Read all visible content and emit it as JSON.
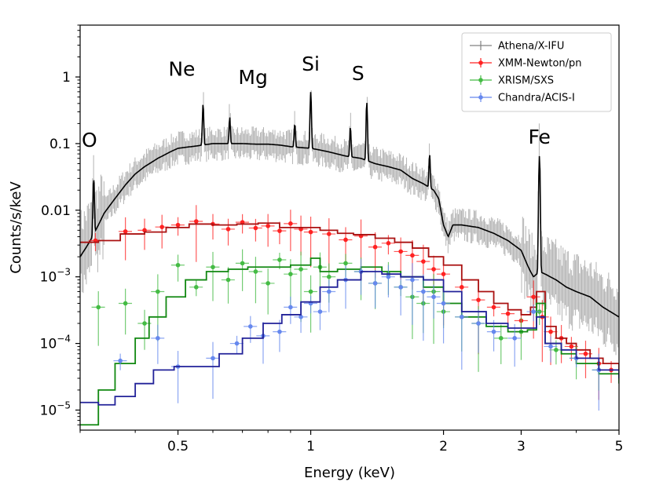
{
  "chart_data": {
    "type": "line",
    "title": "",
    "xlabel": "Energy (keV)",
    "ylabel": "Counts/s/keV",
    "xscale": "log",
    "yscale": "log",
    "xlim": [
      0.3,
      5
    ],
    "ylim": [
      5e-06,
      6
    ],
    "x_ticks": [
      {
        "value": 0.5,
        "label": "0.5"
      },
      {
        "value": 1,
        "label": "1"
      },
      {
        "value": 2,
        "label": "2"
      },
      {
        "value": 3,
        "label": "3"
      },
      {
        "value": 5,
        "label": "5"
      }
    ],
    "y_ticks": [
      {
        "value": 1,
        "label": "1"
      },
      {
        "value": 0.1,
        "label": "0.1"
      },
      {
        "value": 0.01,
        "label": "0.01"
      },
      {
        "value": 0.001,
        "base": "10",
        "exp": "−3"
      },
      {
        "value": 0.0001,
        "base": "10",
        "exp": "−4"
      },
      {
        "value": 1e-05,
        "base": "10",
        "exp": "−5"
      }
    ],
    "legend_position": "top-right",
    "annotations": [
      {
        "text": "O",
        "x": 0.315,
        "y": 0.09
      },
      {
        "text": "Ne",
        "x": 0.51,
        "y": 1.05
      },
      {
        "text": "Mg",
        "x": 0.74,
        "y": 0.78
      },
      {
        "text": "Si",
        "x": 1.0,
        "y": 1.25
      },
      {
        "text": "S",
        "x": 1.28,
        "y": 0.9
      },
      {
        "text": "Fe",
        "x": 3.3,
        "y": 0.1
      }
    ],
    "series": [
      {
        "name": "Athena/X-IFU",
        "color": "#000000",
        "points_color": "#808080",
        "x": [
          0.3,
          0.31,
          0.32,
          0.33,
          0.34,
          0.36,
          0.38,
          0.4,
          0.42,
          0.45,
          0.48,
          0.5,
          0.55,
          0.6,
          0.65,
          0.7,
          0.75,
          0.8,
          0.85,
          0.9,
          0.95,
          1.0,
          1.05,
          1.1,
          1.2,
          1.3,
          1.4,
          1.5,
          1.6,
          1.7,
          1.8,
          1.9,
          1.95,
          2.0,
          2.05,
          2.1,
          2.2,
          2.4,
          2.6,
          2.8,
          3.0,
          3.1,
          3.15,
          3.2,
          3.3,
          3.4,
          3.6,
          3.8,
          4.0,
          4.3,
          4.6,
          5.0
        ],
        "y": [
          0.002,
          0.0028,
          0.004,
          0.006,
          0.009,
          0.015,
          0.024,
          0.035,
          0.045,
          0.06,
          0.075,
          0.085,
          0.092,
          0.1,
          0.1,
          0.1,
          0.098,
          0.098,
          0.095,
          0.09,
          0.087,
          0.085,
          0.08,
          0.075,
          0.065,
          0.06,
          0.05,
          0.045,
          0.04,
          0.03,
          0.025,
          0.02,
          0.015,
          0.006,
          0.004,
          0.006,
          0.006,
          0.0055,
          0.0045,
          0.0035,
          0.0025,
          0.0015,
          0.0012,
          0.001,
          0.0012,
          0.0011,
          0.0009,
          0.0007,
          0.0006,
          0.0005,
          0.00035,
          0.00025
        ],
        "lines": [
          {
            "x": 0.322,
            "peak": 0.03
          },
          {
            "x": 0.57,
            "peak": 0.4
          },
          {
            "x": 0.655,
            "peak": 0.25
          },
          {
            "x": 0.92,
            "peak": 0.2
          },
          {
            "x": 1.0,
            "peak": 0.6
          },
          {
            "x": 1.23,
            "peak": 0.18
          },
          {
            "x": 1.34,
            "peak": 0.42
          },
          {
            "x": 1.86,
            "peak": 0.07
          },
          {
            "x": 3.3,
            "peak": 0.065
          }
        ]
      },
      {
        "name": "XMM-Newton/pn",
        "color": "#aa1111",
        "points_color": "#ff2222",
        "x": [
          0.3,
          0.33,
          0.37,
          0.42,
          0.47,
          0.53,
          0.6,
          0.68,
          0.76,
          0.85,
          0.95,
          1.05,
          1.15,
          1.25,
          1.4,
          1.55,
          1.7,
          1.85,
          2.0,
          2.2,
          2.4,
          2.6,
          2.8,
          3.0,
          3.15,
          3.25,
          3.4,
          3.6,
          3.8,
          4.0,
          4.3,
          4.6,
          5.0
        ],
        "y": [
          0.0033,
          0.0035,
          0.0044,
          0.0047,
          0.0055,
          0.0062,
          0.006,
          0.0062,
          0.0064,
          0.0055,
          0.0055,
          0.005,
          0.0045,
          0.0043,
          0.0038,
          0.0033,
          0.0027,
          0.002,
          0.0015,
          0.0009,
          0.0006,
          0.0004,
          0.00032,
          0.00027,
          0.00035,
          0.0006,
          0.00018,
          0.00012,
          0.0001,
          8e-05,
          6e-05,
          5e-05,
          4e-05
        ],
        "points_x": [
          0.325,
          0.38,
          0.42,
          0.46,
          0.5,
          0.55,
          0.6,
          0.65,
          0.7,
          0.75,
          0.8,
          0.85,
          0.9,
          0.95,
          1.0,
          1.1,
          1.2,
          1.3,
          1.4,
          1.5,
          1.6,
          1.7,
          1.8,
          1.9,
          2.0,
          2.2,
          2.4,
          2.6,
          2.8,
          3.0,
          3.2,
          3.35,
          3.5,
          3.7,
          3.9,
          4.2,
          4.5,
          4.8
        ],
        "points_y": [
          0.0035,
          0.0048,
          0.005,
          0.0056,
          0.006,
          0.0068,
          0.0062,
          0.0052,
          0.0066,
          0.0054,
          0.0058,
          0.0049,
          0.0063,
          0.0052,
          0.0047,
          0.0044,
          0.0036,
          0.0041,
          0.0028,
          0.0032,
          0.0024,
          0.0021,
          0.0017,
          0.0013,
          0.0011,
          0.0007,
          0.00045,
          0.00035,
          0.00028,
          0.00022,
          0.0005,
          0.00025,
          0.00015,
          0.00012,
          9e-05,
          7e-05,
          5e-05,
          4e-05
        ]
      },
      {
        "name": "XRISM/SXS",
        "color": "#118811",
        "points_color": "#44bb44",
        "x": [
          0.3,
          0.33,
          0.36,
          0.4,
          0.43,
          0.47,
          0.52,
          0.58,
          0.65,
          0.72,
          0.8,
          0.9,
          1.0,
          1.05,
          1.15,
          1.3,
          1.45,
          1.6,
          1.8,
          2.0,
          2.2,
          2.5,
          2.8,
          3.1,
          3.25,
          3.4,
          3.7,
          4.0,
          4.5,
          5.0
        ],
        "y": [
          6e-06,
          2e-05,
          5e-05,
          0.00012,
          0.00025,
          0.0005,
          0.0009,
          0.0012,
          0.0013,
          0.0014,
          0.0014,
          0.0015,
          0.0019,
          0.0012,
          0.0013,
          0.0014,
          0.0012,
          0.001,
          0.0007,
          0.0004,
          0.00025,
          0.00018,
          0.00015,
          0.00016,
          0.0004,
          0.0001,
          7e-05,
          5e-05,
          3.5e-05,
          2.5e-05
        ],
        "points_x": [
          0.33,
          0.38,
          0.42,
          0.45,
          0.5,
          0.55,
          0.6,
          0.65,
          0.7,
          0.75,
          0.8,
          0.85,
          0.9,
          0.95,
          1.0,
          1.05,
          1.1,
          1.2,
          1.3,
          1.4,
          1.5,
          1.6,
          1.7,
          1.8,
          1.9,
          2.0,
          2.2,
          2.4,
          2.7,
          3.0,
          3.3,
          3.6,
          4.0,
          4.5
        ],
        "points_y": [
          0.00035,
          0.0004,
          0.0002,
          0.0006,
          0.0015,
          0.0007,
          0.0014,
          0.0009,
          0.0016,
          0.0012,
          0.0008,
          0.0018,
          0.0011,
          0.0013,
          0.0006,
          0.0014,
          0.001,
          0.0016,
          0.0012,
          0.0008,
          0.0011,
          0.0007,
          0.0005,
          0.0004,
          0.0006,
          0.0003,
          0.00025,
          0.0002,
          0.00012,
          0.00015,
          0.0003,
          8e-05,
          6e-05,
          4e-05
        ]
      },
      {
        "name": "Chandra/ACIS-I",
        "color": "#222299",
        "points_color": "#6688ee",
        "x": [
          0.3,
          0.33,
          0.36,
          0.4,
          0.44,
          0.49,
          0.55,
          0.62,
          0.7,
          0.78,
          0.86,
          0.95,
          1.05,
          1.15,
          1.3,
          1.45,
          1.6,
          1.8,
          2.0,
          2.2,
          2.5,
          2.8,
          3.1,
          3.25,
          3.4,
          3.7,
          4.0,
          4.5,
          5.0
        ],
        "y": [
          1.3e-05,
          1.2e-05,
          1.6e-05,
          2.5e-05,
          4e-05,
          4.5e-05,
          4.5e-05,
          7e-05,
          0.00012,
          0.0002,
          0.00027,
          0.00042,
          0.0007,
          0.0009,
          0.0012,
          0.0011,
          0.001,
          0.0009,
          0.0006,
          0.0003,
          0.0002,
          0.00017,
          0.00017,
          0.00025,
          0.0001,
          8e-05,
          6e-05,
          4e-05,
          3e-05
        ],
        "points_x": [
          0.37,
          0.45,
          0.5,
          0.6,
          0.68,
          0.73,
          0.78,
          0.85,
          0.9,
          0.95,
          1.0,
          1.05,
          1.1,
          1.2,
          1.3,
          1.4,
          1.5,
          1.6,
          1.7,
          1.8,
          1.9,
          2.0,
          2.2,
          2.4,
          2.6,
          2.9,
          3.2,
          3.5,
          4.0,
          4.5
        ],
        "points_y": [
          5.5e-05,
          0.00012,
          4.5e-05,
          6e-05,
          0.0001,
          0.00018,
          0.00013,
          0.00015,
          0.00035,
          0.00025,
          0.0004,
          0.0003,
          0.0006,
          0.0009,
          0.0012,
          0.0008,
          0.001,
          0.0007,
          0.0009,
          0.0006,
          0.0005,
          0.0004,
          0.00025,
          0.0002,
          0.00015,
          0.00012,
          0.0003,
          9e-05,
          6e-05,
          4e-05
        ]
      }
    ]
  }
}
